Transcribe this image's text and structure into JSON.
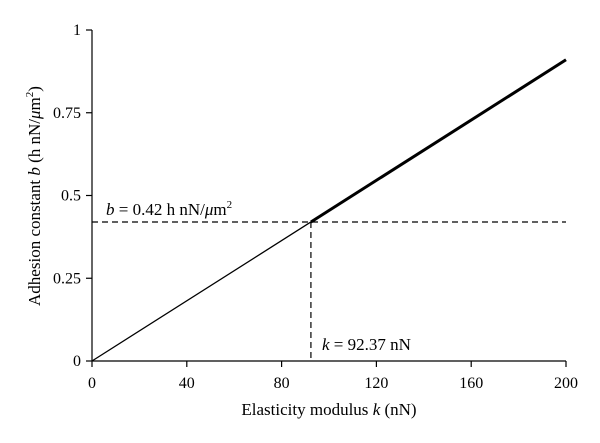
{
  "chart_data": {
    "type": "line",
    "xlabel": {
      "text": "Elasticity modulus ",
      "var": "k",
      "unit": " (nN)"
    },
    "ylabel": {
      "text": "Adhesion constant ",
      "var": "b",
      "unit_pre": " (h nN/",
      "mu": "μ",
      "unit_post": "m",
      "sup": "2",
      "close": ")"
    },
    "xlim": [
      0,
      200
    ],
    "ylim": [
      0,
      1
    ],
    "x_ticks": [
      0,
      40,
      80,
      120,
      160,
      200
    ],
    "x_tick_labels": [
      "0",
      "40",
      "80",
      "120",
      "160",
      "200"
    ],
    "y_ticks": [
      0,
      0.25,
      0.5,
      0.75,
      1
    ],
    "y_tick_labels": [
      "0",
      "0.25",
      "0.5",
      "0.75",
      "1"
    ],
    "grid": false,
    "series": [
      {
        "x": [
          0,
          92.37
        ],
        "y": [
          0,
          0.42
        ],
        "style": "thin"
      },
      {
        "x": [
          92.37,
          200
        ],
        "y": [
          0.42,
          0.91
        ],
        "style": "thick"
      }
    ],
    "reference_lines": {
      "x": 92.37,
      "y": 0.42
    },
    "annotations": {
      "b": {
        "var": "b",
        "text": " = 0.42 h nN/",
        "mu": "μ",
        "unit": "m",
        "sup": "2"
      },
      "k": {
        "var": "k",
        "text": " = 92.37 nN"
      }
    }
  }
}
